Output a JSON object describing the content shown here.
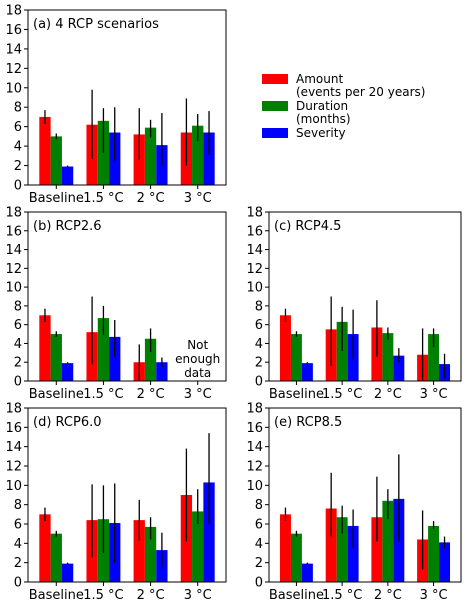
{
  "legend": {
    "placement": "right of panel (a)",
    "items": [
      {
        "label_lines": [
          "Amount",
          "(events per 20 years)"
        ],
        "color": "#ff0000"
      },
      {
        "label_lines": [
          "Duration",
          "(months)"
        ],
        "color": "#008000"
      },
      {
        "label_lines": [
          "Severity"
        ],
        "color": "#0000ff"
      }
    ]
  },
  "chart_data": [
    {
      "type": "bar",
      "title": "(a) 4 RCP scenarios",
      "categories": [
        "Baseline",
        "1.5 °C",
        "2 °C",
        "3 °C"
      ],
      "ylim": [
        0,
        18
      ],
      "yticks": [
        0,
        2,
        4,
        6,
        8,
        10,
        12,
        14,
        16,
        18
      ],
      "grid": false,
      "annotations": [],
      "series": [
        {
          "name": "Amount (events per 20 years)",
          "color": "#ff0000",
          "values": [
            7.0,
            6.2,
            5.2,
            5.4
          ],
          "err_low": [
            6.3,
            2.7,
            2.6,
            2.0
          ],
          "err_high": [
            7.7,
            9.8,
            7.9,
            8.9
          ]
        },
        {
          "name": "Duration (months)",
          "color": "#008000",
          "values": [
            5.0,
            6.6,
            5.9,
            6.1
          ],
          "err_low": [
            4.7,
            3.3,
            4.9,
            4.5
          ],
          "err_high": [
            5.3,
            7.9,
            6.7,
            7.3
          ]
        },
        {
          "name": "Severity",
          "color": "#0000ff",
          "values": [
            1.9,
            5.4,
            4.1,
            5.4
          ],
          "err_low": [
            1.8,
            2.5,
            1.9,
            3.1
          ],
          "err_high": [
            2.0,
            8.0,
            7.4,
            7.6
          ]
        }
      ]
    },
    {
      "type": "bar",
      "title": "(b) RCP2.6",
      "categories": [
        "Baseline",
        "1.5 °C",
        "2 °C",
        "3 °C"
      ],
      "ylim": [
        0,
        18
      ],
      "yticks": [
        0,
        2,
        4,
        6,
        8,
        10,
        12,
        14,
        16,
        18
      ],
      "grid": false,
      "annotations": [
        {
          "category": "3 °C",
          "lines": [
            "Not",
            "enough",
            "data"
          ]
        }
      ],
      "series": [
        {
          "name": "Amount (events per 20 years)",
          "color": "#ff0000",
          "values": [
            7.0,
            5.2,
            2.0,
            null
          ],
          "err_low": [
            6.3,
            1.8,
            0.1,
            null
          ],
          "err_high": [
            7.7,
            9.0,
            3.9,
            null
          ]
        },
        {
          "name": "Duration (months)",
          "color": "#008000",
          "values": [
            5.0,
            6.7,
            4.5,
            null
          ],
          "err_low": [
            4.7,
            4.9,
            3.1,
            null
          ],
          "err_high": [
            5.3,
            8.0,
            5.6,
            null
          ]
        },
        {
          "name": "Severity",
          "color": "#0000ff",
          "values": [
            1.9,
            4.7,
            2.0,
            null
          ],
          "err_low": [
            1.8,
            2.6,
            1.5,
            null
          ],
          "err_high": [
            2.0,
            6.5,
            2.5,
            null
          ]
        }
      ]
    },
    {
      "type": "bar",
      "title": "(c) RCP4.5",
      "categories": [
        "Baseline",
        "1.5 °C",
        "2 °C",
        "3 °C"
      ],
      "ylim": [
        0,
        18
      ],
      "yticks": [
        0,
        2,
        4,
        6,
        8,
        10,
        12,
        14,
        16,
        18
      ],
      "grid": false,
      "annotations": [],
      "series": [
        {
          "name": "Amount (events per 20 years)",
          "color": "#ff0000",
          "values": [
            7.0,
            5.5,
            5.7,
            2.8
          ],
          "err_low": [
            6.3,
            1.6,
            2.6,
            0.1
          ],
          "err_high": [
            7.7,
            9.0,
            8.6,
            5.6
          ]
        },
        {
          "name": "Duration (months)",
          "color": "#008000",
          "values": [
            5.0,
            6.3,
            5.1,
            5.0
          ],
          "err_low": [
            4.7,
            3.2,
            4.4,
            3.6
          ],
          "err_high": [
            5.3,
            7.9,
            5.7,
            5.6
          ]
        },
        {
          "name": "Severity",
          "color": "#0000ff",
          "values": [
            1.9,
            5.0,
            2.7,
            1.8
          ],
          "err_low": [
            1.8,
            2.3,
            2.0,
            0.3
          ],
          "err_high": [
            2.0,
            7.6,
            3.5,
            2.9
          ]
        }
      ]
    },
    {
      "type": "bar",
      "title": "(d) RCP6.0",
      "categories": [
        "Baseline",
        "1.5 °C",
        "2 °C",
        "3 °C"
      ],
      "ylim": [
        0,
        18
      ],
      "yticks": [
        0,
        2,
        4,
        6,
        8,
        10,
        12,
        14,
        16,
        18
      ],
      "grid": false,
      "annotations": [],
      "series": [
        {
          "name": "Amount (events per 20 years)",
          "color": "#ff0000",
          "values": [
            7.0,
            6.4,
            6.4,
            9.0
          ],
          "err_low": [
            6.3,
            2.6,
            4.3,
            4.2
          ],
          "err_high": [
            7.7,
            10.1,
            8.5,
            13.8
          ]
        },
        {
          "name": "Duration (months)",
          "color": "#008000",
          "values": [
            5.0,
            6.5,
            5.7,
            7.3
          ],
          "err_low": [
            4.7,
            3.0,
            4.4,
            6.0
          ],
          "err_high": [
            5.3,
            10.0,
            6.7,
            9.6
          ]
        },
        {
          "name": "Severity",
          "color": "#0000ff",
          "values": [
            1.9,
            6.1,
            3.3,
            10.3
          ],
          "err_low": [
            1.8,
            2.0,
            1.4,
            6.0
          ],
          "err_high": [
            2.0,
            10.2,
            5.1,
            15.4
          ]
        }
      ]
    },
    {
      "type": "bar",
      "title": "(e) RCP8.5",
      "categories": [
        "Baseline",
        "1.5 °C",
        "2 °C",
        "3 °C"
      ],
      "ylim": [
        0,
        18
      ],
      "yticks": [
        0,
        2,
        4,
        6,
        8,
        10,
        12,
        14,
        16,
        18
      ],
      "grid": false,
      "annotations": [],
      "series": [
        {
          "name": "Amount (events per 20 years)",
          "color": "#ff0000",
          "values": [
            7.0,
            7.6,
            6.7,
            4.4
          ],
          "err_low": [
            6.3,
            4.7,
            4.2,
            1.3
          ],
          "err_high": [
            7.7,
            11.3,
            10.9,
            7.4
          ]
        },
        {
          "name": "Duration (months)",
          "color": "#008000",
          "values": [
            5.0,
            6.7,
            8.4,
            5.8
          ],
          "err_low": [
            4.7,
            5.0,
            6.5,
            5.5
          ],
          "err_high": [
            5.3,
            7.9,
            9.6,
            6.3
          ]
        },
        {
          "name": "Severity",
          "color": "#0000ff",
          "values": [
            1.9,
            5.8,
            8.6,
            4.1
          ],
          "err_low": [
            1.8,
            3.5,
            4.2,
            3.5
          ],
          "err_high": [
            2.0,
            7.5,
            13.2,
            4.7
          ]
        }
      ]
    }
  ]
}
